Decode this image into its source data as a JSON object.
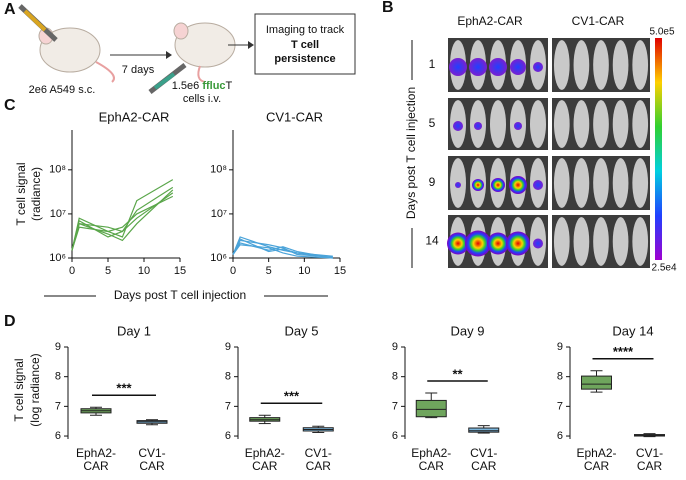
{
  "panel_labels": [
    "A",
    "B",
    "C",
    "D"
  ],
  "schematic": {
    "step1": "2e6 A549 s.c.",
    "interval": "7 days",
    "dose": "1.5e6",
    "reporter": "ffluc",
    "cell": "T",
    "route": "cells i.v.",
    "box_line1": "Imaging to track",
    "box_line2": "T cell",
    "box_line3": "persistence"
  },
  "imaging": {
    "columns": [
      "EphA2-CAR",
      "CV1-CAR"
    ],
    "rows": [
      "1",
      "5",
      "9",
      "14"
    ],
    "ylabel": "Days post T cell injection",
    "colorbar_max": "5.0e5",
    "colorbar_min": "2.5e4"
  },
  "panel_c": {
    "xlabel": "Days post T cell injection"
  },
  "panel_d": {
    "ylabel": [
      "T cell  signal",
      "(log radiance)"
    ]
  },
  "chart_data": [
    {
      "type": "line",
      "title": "EphA2-CAR",
      "ylabel": [
        "T cell  signal",
        "(radiance)"
      ],
      "log": true,
      "x": [
        0,
        1,
        5,
        7,
        9,
        14
      ],
      "xlim": [
        0,
        15
      ],
      "xticks": [
        0,
        5,
        10,
        15
      ],
      "ylim": [
        1000000,
        800000000
      ],
      "yticks": [
        {
          "value": 1000000,
          "label": "10⁶"
        },
        {
          "value": 10000000,
          "label": "10⁷"
        },
        {
          "value": 100000000,
          "label": "10⁸"
        }
      ],
      "series": [
        {
          "color": "#5aa64a",
          "values": [
            1500000,
            8000000,
            4000000,
            3000000,
            20000000,
            60000000
          ]
        },
        {
          "color": "#5aa64a",
          "values": [
            1500000,
            6000000,
            5000000,
            4000000,
            12000000,
            40000000
          ]
        },
        {
          "color": "#5aa64a",
          "values": [
            1500000,
            7000000,
            3000000,
            4000000,
            8000000,
            30000000
          ]
        },
        {
          "color": "#5aa64a",
          "values": [
            1500000,
            5000000,
            4000000,
            5000000,
            10000000,
            25000000
          ]
        },
        {
          "color": "#5aa64a",
          "values": [
            1500000,
            6000000,
            3500000,
            2500000,
            6000000,
            35000000
          ]
        }
      ]
    },
    {
      "type": "line",
      "title": "CV1-CAR",
      "log": true,
      "x": [
        0,
        1,
        5,
        7,
        9,
        14
      ],
      "xlim": [
        0,
        15
      ],
      "xticks": [
        0,
        5,
        10,
        15
      ],
      "ylim": [
        1000000,
        800000000
      ],
      "yticks": [
        {
          "value": 1000000,
          "label": "10⁶"
        },
        {
          "value": 10000000,
          "label": "10⁷"
        },
        {
          "value": 100000000,
          "label": "10⁸"
        }
      ],
      "series": [
        {
          "color": "#4aa3d9",
          "values": [
            1200000,
            3000000,
            1800000,
            1500000,
            1300000,
            1000000
          ]
        },
        {
          "color": "#4aa3d9",
          "values": [
            1200000,
            2500000,
            2000000,
            1700000,
            1200000,
            1050000
          ]
        },
        {
          "color": "#4aa3d9",
          "values": [
            1200000,
            2200000,
            1500000,
            1800000,
            1400000,
            1000000
          ]
        },
        {
          "color": "#4aa3d9",
          "values": [
            1200000,
            2000000,
            1700000,
            1300000,
            1100000,
            1000000
          ]
        },
        {
          "color": "#4aa3d9",
          "values": [
            1200000,
            2700000,
            1400000,
            1600000,
            1300000,
            1100000
          ]
        }
      ]
    },
    {
      "type": "box",
      "title": "Day 1",
      "categories": [
        "EphA2-CAR",
        "CV1-CAR"
      ],
      "ylim": [
        5.9,
        9
      ],
      "yticks": [
        6,
        7,
        8,
        9
      ],
      "significance": "***",
      "boxes": [
        {
          "low": 6.7,
          "q1": 6.78,
          "median": 6.85,
          "q3": 6.92,
          "high": 6.97,
          "color": "#6fa55d"
        },
        {
          "low": 6.38,
          "q1": 6.43,
          "median": 6.48,
          "q3": 6.52,
          "high": 6.55,
          "color": "#7ab6dd"
        }
      ]
    },
    {
      "type": "box",
      "title": "Day 5",
      "categories": [
        "EphA2-CAR",
        "CV1-CAR"
      ],
      "ylim": [
        5.9,
        9
      ],
      "yticks": [
        6,
        7,
        8,
        9
      ],
      "significance": "***",
      "boxes": [
        {
          "low": 6.42,
          "q1": 6.5,
          "median": 6.55,
          "q3": 6.62,
          "high": 6.7,
          "color": "#6fa55d"
        },
        {
          "low": 6.12,
          "q1": 6.17,
          "median": 6.22,
          "q3": 6.28,
          "high": 6.33,
          "color": "#7ab6dd"
        }
      ]
    },
    {
      "type": "box",
      "title": "Day 9",
      "categories": [
        "EphA2-CAR",
        "CV1-CAR"
      ],
      "ylim": [
        5.9,
        9
      ],
      "yticks": [
        6,
        7,
        8,
        9
      ],
      "significance": "**",
      "boxes": [
        {
          "low": 6.62,
          "q1": 6.65,
          "median": 6.9,
          "q3": 7.2,
          "high": 7.45,
          "color": "#6fa55d"
        },
        {
          "low": 6.1,
          "q1": 6.13,
          "median": 6.18,
          "q3": 6.27,
          "high": 6.35,
          "color": "#7ab6dd"
        }
      ]
    },
    {
      "type": "box",
      "title": "Day 14",
      "categories": [
        "EphA2-CAR",
        "CV1-CAR"
      ],
      "ylim": [
        5.9,
        9
      ],
      "yticks": [
        6,
        7,
        8,
        9
      ],
      "significance": "****",
      "boxes": [
        {
          "low": 7.48,
          "q1": 7.58,
          "median": 7.75,
          "q3": 8.02,
          "high": 8.2,
          "color": "#6fa55d"
        },
        {
          "low": 5.98,
          "q1": 6.0,
          "median": 6.02,
          "q3": 6.05,
          "high": 6.08,
          "color": "#7ab6dd"
        }
      ]
    }
  ]
}
